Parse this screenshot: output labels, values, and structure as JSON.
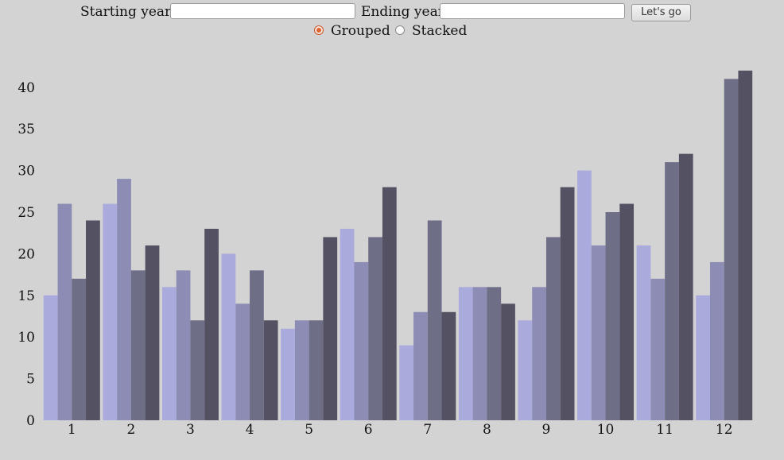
{
  "controls": {
    "start_label": "Starting year",
    "start_value": "",
    "end_label": "Ending year",
    "end_value": "",
    "button_label": "Let's go",
    "mode_options": [
      "Grouped",
      "Stacked"
    ],
    "selected_mode": "Grouped"
  },
  "chart_data": {
    "type": "bar",
    "mode": "grouped",
    "categories": [
      "1",
      "2",
      "3",
      "4",
      "5",
      "6",
      "7",
      "8",
      "9",
      "10",
      "11",
      "12"
    ],
    "series": [
      {
        "color": "#aaaadc",
        "values": [
          15,
          26,
          16,
          20,
          11,
          23,
          9,
          16,
          12,
          30,
          21,
          15
        ]
      },
      {
        "color": "#8c8cb4",
        "values": [
          26,
          29,
          18,
          14,
          12,
          19,
          13,
          16,
          16,
          21,
          17,
          19
        ]
      },
      {
        "color": "#6f6e87",
        "values": [
          17,
          18,
          12,
          18,
          12,
          22,
          24,
          16,
          22,
          25,
          31,
          41
        ]
      },
      {
        "color": "#545262",
        "values": [
          24,
          21,
          23,
          12,
          22,
          28,
          13,
          14,
          28,
          26,
          32,
          42
        ]
      }
    ],
    "yticks": [
      0,
      5,
      10,
      15,
      20,
      25,
      30,
      35,
      40
    ],
    "ylim": [
      0,
      42
    ],
    "xlabel": "",
    "ylabel": "",
    "grid": false,
    "legend": "none"
  }
}
